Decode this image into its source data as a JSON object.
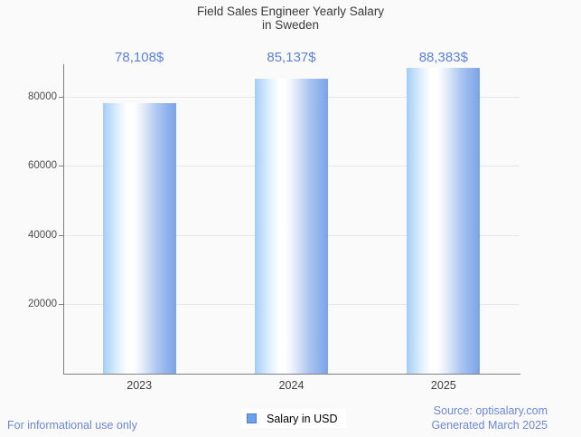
{
  "title": {
    "line1": "Field Sales Engineer Yearly Salary",
    "line2": "in Sweden"
  },
  "chart_data": {
    "type": "bar",
    "title": "Field Sales Engineer Yearly Salary in Sweden",
    "categories": [
      "2023",
      "2024",
      "2025"
    ],
    "series": [
      {
        "name": "Salary in USD",
        "values": [
          78108,
          85137,
          88383
        ]
      }
    ],
    "value_labels": [
      "78,108$",
      "85,137$",
      "88,383$"
    ],
    "xlabel": "",
    "ylabel": "",
    "ylim": [
      0,
      89300
    ],
    "yticks": [
      20000,
      40000,
      60000,
      80000
    ],
    "grid": true,
    "legend_position": "bottom-center"
  },
  "legend": {
    "label": "Salary in USD"
  },
  "footer": {
    "left": "For informational use only",
    "source_line1": "Source: optisalary.com",
    "source_line2": "Generated March 2025"
  },
  "colors": {
    "background": "#fafafa",
    "axis": "#808080",
    "gridline": "#e6e6e6",
    "title_text": "#3a3a3a",
    "axis_label_text": "#4d4d4d",
    "value_label_text": "#5b82d9",
    "footer_text": "#6d87d6",
    "bar_gradient_left": "#a5cdf6",
    "bar_gradient_mid": "#ffffff",
    "bar_gradient_right": "#79a3e9",
    "legend_swatch_fill": "#6ca2e8",
    "legend_swatch_border": "#4f7dc9"
  }
}
